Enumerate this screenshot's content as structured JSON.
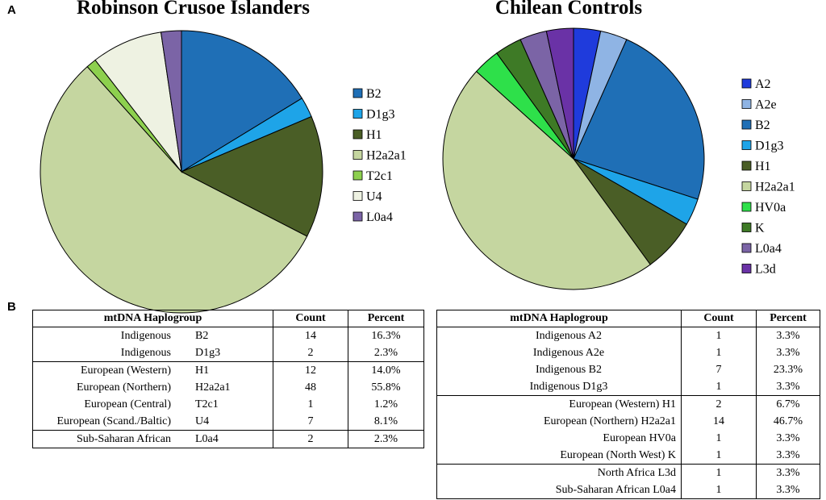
{
  "panel_labels": {
    "a": "A",
    "b": "B"
  },
  "chart_data": [
    {
      "type": "pie",
      "title": "Robinson Crusoe Islanders",
      "start_angle_deg": 0,
      "direction": "clockwise",
      "legend_position": "right",
      "slices": [
        {
          "label": "B2",
          "value": 14,
          "color": "#1f6fb6"
        },
        {
          "label": "D1g3",
          "value": 2,
          "color": "#1ea4e8"
        },
        {
          "label": "H1",
          "value": 12,
          "color": "#4a5e26"
        },
        {
          "label": "H2a2a1",
          "value": 48,
          "color": "#c5d6a0"
        },
        {
          "label": "T2c1",
          "value": 1,
          "color": "#8dd04e"
        },
        {
          "label": "U4",
          "value": 7,
          "color": "#eef2e2"
        },
        {
          "label": "L0a4",
          "value": 2,
          "color": "#7b64a6"
        }
      ]
    },
    {
      "type": "pie",
      "title": "Chilean Controls",
      "start_angle_deg": 0,
      "direction": "clockwise",
      "legend_position": "right",
      "slices": [
        {
          "label": "A2",
          "value": 1,
          "color": "#1f3bdc"
        },
        {
          "label": "A2e",
          "value": 1,
          "color": "#8fb4e4"
        },
        {
          "label": "B2",
          "value": 7,
          "color": "#1f6fb6"
        },
        {
          "label": "D1g3",
          "value": 1,
          "color": "#1ea4e8"
        },
        {
          "label": "H1",
          "value": 2,
          "color": "#4a5e26"
        },
        {
          "label": "H2a2a1",
          "value": 14,
          "color": "#c5d6a0"
        },
        {
          "label": "HV0a",
          "value": 1,
          "color": "#2ee04a"
        },
        {
          "label": "K",
          "value": 1,
          "color": "#3e7a26"
        },
        {
          "label": "L0a4",
          "value": 1,
          "color": "#7b64a6"
        },
        {
          "label": "L3d",
          "value": 1,
          "color": "#6a32a6"
        }
      ],
      "legend_order": [
        "A2",
        "A2e",
        "B2",
        "D1g3",
        "H1",
        "H2a2a1",
        "HV0a",
        "K",
        "L0a4",
        "L3d"
      ]
    }
  ],
  "tables": [
    {
      "headers": {
        "group": "mtDNA Haplogroup",
        "count": "Count",
        "percent": "Percent"
      },
      "rows": [
        {
          "origin": "Indigenous",
          "hg": "B2",
          "count": "14",
          "percent": "16.3%",
          "group_start": true
        },
        {
          "origin": "Indigenous",
          "hg": "D1g3",
          "count": "2",
          "percent": "2.3%"
        },
        {
          "origin": "European (Western)",
          "hg": "H1",
          "count": "12",
          "percent": "14.0%",
          "group_start": true
        },
        {
          "origin": "European (Northern)",
          "hg": "H2a2a1",
          "count": "48",
          "percent": "55.8%"
        },
        {
          "origin": "European (Central)",
          "hg": "T2c1",
          "count": "1",
          "percent": "1.2%"
        },
        {
          "origin": "European (Scand./Baltic)",
          "hg": "U4",
          "count": "7",
          "percent": "8.1%"
        },
        {
          "origin": "Sub-Saharan African",
          "hg": "L0a4",
          "count": "2",
          "percent": "2.3%",
          "group_start": true
        }
      ]
    },
    {
      "headers": {
        "group": "mtDNA Haplogroup",
        "count": "Count",
        "percent": "Percent"
      },
      "rows": [
        {
          "label": "Indigenous A2",
          "count": "1",
          "percent": "3.3%",
          "group_start": true
        },
        {
          "label": "Indigenous A2e",
          "count": "1",
          "percent": "3.3%"
        },
        {
          "label": "Indigenous B2",
          "count": "7",
          "percent": "23.3%"
        },
        {
          "label": "Indigenous D1g3",
          "count": "1",
          "percent": "3.3%"
        },
        {
          "label": "European (Western) H1",
          "count": "2",
          "percent": "6.7%",
          "group_start": true
        },
        {
          "label": "European (Northern) H2a2a1",
          "count": "14",
          "percent": "46.7%"
        },
        {
          "label": "European HV0a",
          "count": "1",
          "percent": "3.3%"
        },
        {
          "label": "European (North West) K",
          "count": "1",
          "percent": "3.3%"
        },
        {
          "label": "North Africa L3d",
          "count": "1",
          "percent": "3.3%",
          "group_start": true
        },
        {
          "label": "Sub-Saharan African L0a4",
          "count": "1",
          "percent": "3.3%"
        }
      ]
    }
  ]
}
